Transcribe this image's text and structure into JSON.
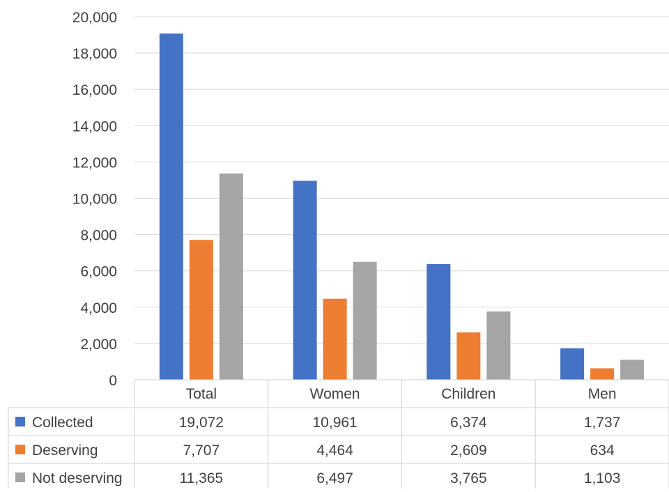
{
  "chart_data": {
    "type": "bar",
    "categories": [
      "Total",
      "Women",
      "Children",
      "Men"
    ],
    "series": [
      {
        "name": "Collected",
        "color": "#4472C4",
        "values": [
          19072,
          10961,
          6374,
          1737
        ]
      },
      {
        "name": "Deserving",
        "color": "#ED7D31",
        "values": [
          7707,
          4464,
          2609,
          634
        ]
      },
      {
        "name": "Not deserving",
        "color": "#A5A5A5",
        "values": [
          11365,
          6497,
          3765,
          1103
        ]
      }
    ],
    "data_table": {
      "rows": [
        {
          "label": "Collected",
          "cells": [
            "19,072",
            "10,961",
            "6,374",
            "1,737"
          ]
        },
        {
          "label": "Deserving",
          "cells": [
            "7,707",
            "4,464",
            "2,609",
            "634"
          ]
        },
        {
          "label": "Not deserving",
          "cells": [
            "11,365",
            "6,497",
            "3,765",
            "1,103"
          ]
        }
      ]
    },
    "y_ticks": [
      "0",
      "2,000",
      "4,000",
      "6,000",
      "8,000",
      "10,000",
      "12,000",
      "14,000",
      "16,000",
      "18,000",
      "20,000"
    ],
    "ylim": [
      0,
      20000
    ],
    "y_step": 2000,
    "grid": true,
    "legend": "data table",
    "title": "",
    "xlabel": "",
    "ylabel": ""
  }
}
